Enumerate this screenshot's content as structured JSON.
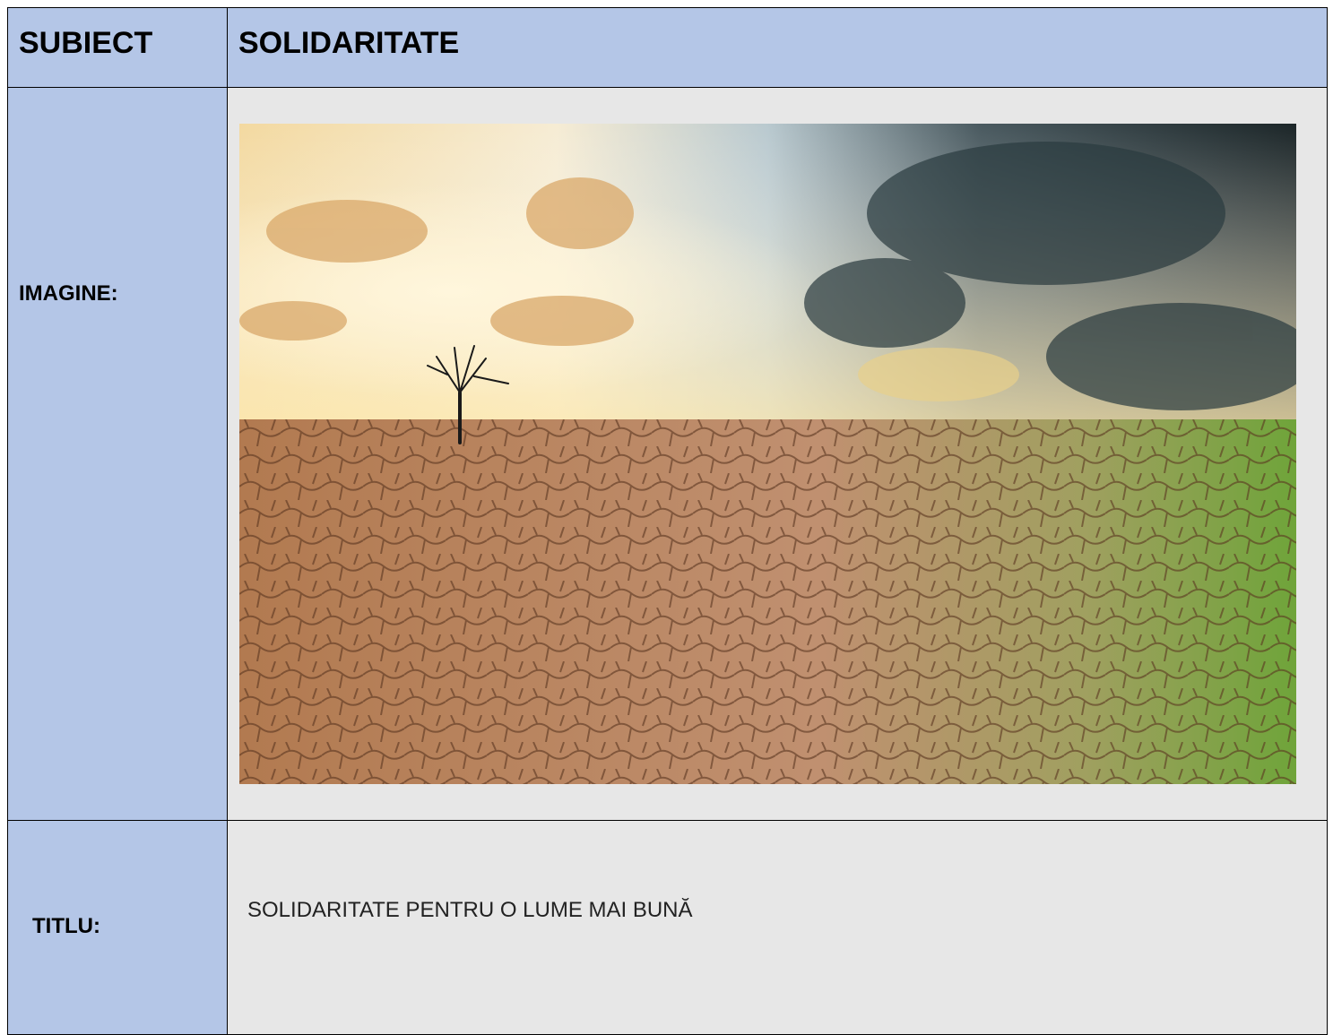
{
  "table": {
    "header": [
      "SUBIECT",
      "SOLIDARITATE"
    ],
    "rows": [
      {
        "label": "IMAGINE:"
      },
      {
        "label": "TITLU:",
        "text": "SOLIDARITATE PENTRU O LUME MAI BUNĂ"
      }
    ]
  }
}
